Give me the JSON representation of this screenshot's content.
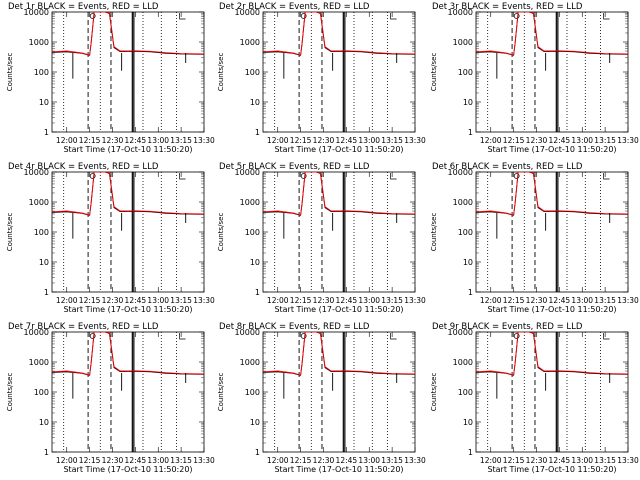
{
  "ylabel": "Counts/sec",
  "xlabel": "Start Time (17-Oct-10 11:50:20)",
  "colors": {
    "events": "#000000",
    "lld": "#ff0000",
    "background": "#ffffff"
  },
  "x_ticks": [
    "12:00",
    "12:15",
    "12:30",
    "12:45",
    "13:00",
    "13:15",
    "13:30"
  ],
  "y_ticks": [
    "1",
    "10",
    "100",
    "1000",
    "10000"
  ],
  "chart_data": [
    {
      "type": "line",
      "title": "Det 1r BLACK = Events, RED = LLD",
      "xlim": [
        "11:50:20",
        "13:30"
      ],
      "ylim": [
        1,
        10000
      ],
      "yscale": "log"
    },
    {
      "type": "line",
      "title": "Det 2r BLACK = Events, RED = LLD",
      "xlim": [
        "11:50:20",
        "13:30"
      ],
      "ylim": [
        1,
        10000
      ],
      "yscale": "log"
    },
    {
      "type": "line",
      "title": "Det 3r BLACK = Events, RED = LLD",
      "xlim": [
        "11:50:20",
        "13:30"
      ],
      "ylim": [
        1,
        10000
      ],
      "yscale": "log"
    },
    {
      "type": "line",
      "title": "Det 4r BLACK = Events, RED = LLD",
      "xlim": [
        "11:50:20",
        "13:30"
      ],
      "ylim": [
        1,
        10000
      ],
      "yscale": "log"
    },
    {
      "type": "line",
      "title": "Det 5r BLACK = Events, RED = LLD",
      "xlim": [
        "11:50:20",
        "13:30"
      ],
      "ylim": [
        1,
        10000
      ],
      "yscale": "log"
    },
    {
      "type": "line",
      "title": "Det 6r BLACK = Events, RED = LLD",
      "xlim": [
        "11:50:20",
        "13:30"
      ],
      "ylim": [
        1,
        10000
      ],
      "yscale": "log"
    },
    {
      "type": "line",
      "title": "Det 7r BLACK = Events, RED = LLD",
      "xlim": [
        "11:50:20",
        "13:30"
      ],
      "ylim": [
        1,
        10000
      ],
      "yscale": "log"
    },
    {
      "type": "line",
      "title": "Det 8r BLACK = Events, RED = LLD",
      "xlim": [
        "11:50:20",
        "13:30"
      ],
      "ylim": [
        1,
        10000
      ],
      "yscale": "log"
    },
    {
      "type": "line",
      "title": "Det 9r BLACK = Events, RED = LLD",
      "xlim": [
        "11:50:20",
        "13:30"
      ],
      "ylim": [
        1,
        10000
      ],
      "yscale": "log"
    }
  ],
  "series": {
    "x": [
      "11:50",
      "12:00",
      "12:10",
      "12:15",
      "12:16",
      "12:18",
      "12:25",
      "12:28",
      "12:31",
      "12:35",
      "12:45",
      "12:55",
      "13:05",
      "13:15",
      "13:30"
    ],
    "events": [
      450,
      470,
      420,
      360,
      900,
      11000,
      11000,
      9000,
      650,
      480,
      490,
      470,
      420,
      400,
      390
    ],
    "lld": [
      470,
      500,
      430,
      370,
      950,
      12000,
      12000,
      9500,
      700,
      500,
      510,
      490,
      440,
      410,
      400
    ],
    "events_dropouts": [
      {
        "x": "12:04",
        "y": 60
      },
      {
        "x": "12:36",
        "y": 110
      },
      {
        "x": "13:18",
        "y": 200
      }
    ]
  },
  "markers": {
    "dotted": [
      "11:58",
      "12:22",
      "12:50",
      "13:02",
      "13:12"
    ],
    "dashed": [
      "12:14",
      "12:29"
    ],
    "solid": [
      "12:43",
      "12:44"
    ]
  }
}
